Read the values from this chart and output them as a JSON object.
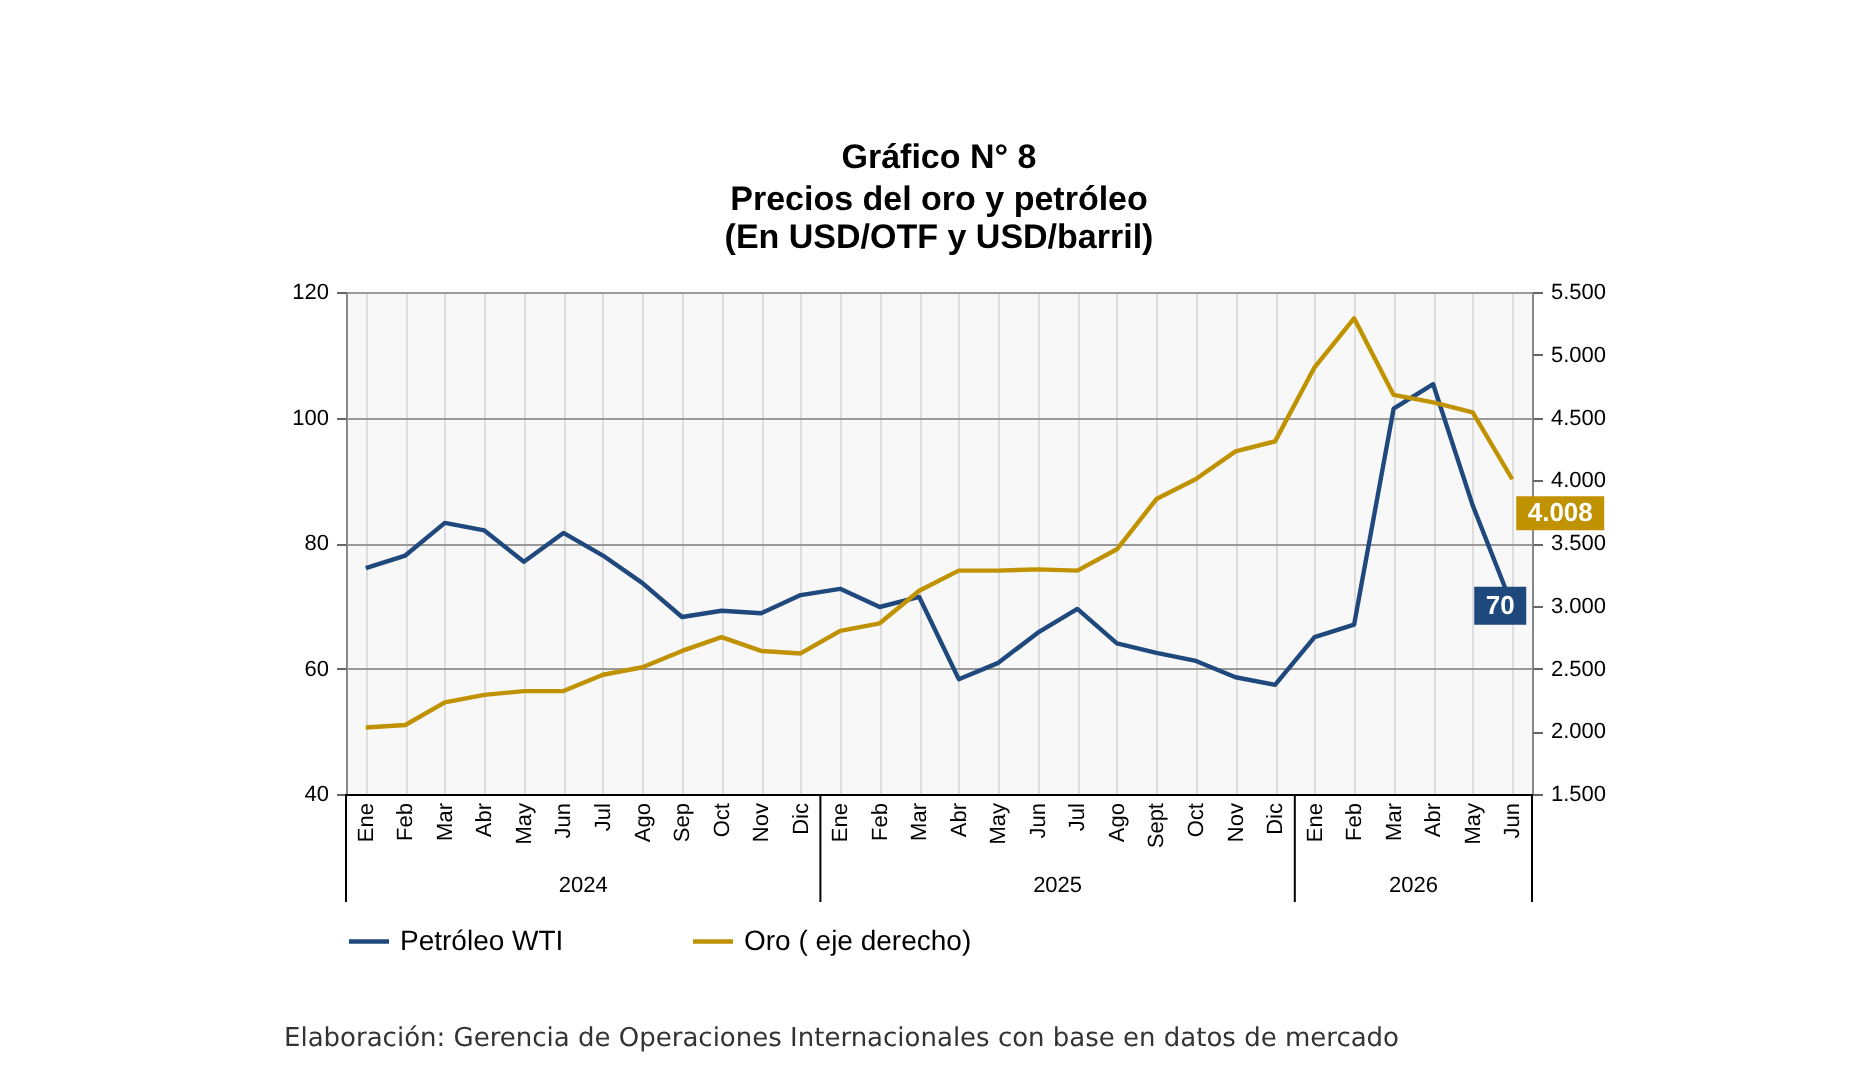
{
  "chart_data": {
    "type": "line",
    "title": "Gráfico N° 8",
    "subtitle": "Precios del oro y petróleo\n(En USD/OTF y USD/barril)",
    "categories": [
      "Ene",
      "Feb",
      "Mar",
      "Abr",
      "May",
      "Jun",
      "Jul",
      "Ago",
      "Sep",
      "Oct",
      "Nov",
      "Dic",
      "Ene",
      "Feb",
      "Mar",
      "Abr",
      "May",
      "Jun",
      "Jul",
      "Ago",
      "Sept",
      "Oct",
      "Nov",
      "Dic",
      "Ene",
      "Feb",
      "Mar",
      "Abr",
      "May",
      "Jun"
    ],
    "series": [
      {
        "name": "Petróleo WTI",
        "color": "#1f497d",
        "values": [
          76,
          78,
          83.2,
          82,
          77,
          81.6,
          78,
          73.6,
          68.2,
          69.2,
          68.8,
          71.7,
          72.7,
          69.8,
          71.4,
          58.3,
          60.9,
          65.7,
          69.5,
          64,
          62.5,
          61.2,
          58.6,
          57.4,
          65,
          67,
          101.4,
          105.3,
          86,
          70
        ],
        "value_labels": [
          null,
          null,
          null,
          null,
          null,
          null,
          null,
          null,
          null,
          null,
          null,
          null,
          null,
          null,
          null,
          null,
          null,
          null,
          null,
          null,
          null,
          null,
          null,
          null,
          null,
          null,
          null,
          null,
          null,
          "70"
        ]
      },
      {
        "name": "Oro ( eje derecho)",
        "color": "#c09200",
        "axis": "y2",
        "values": [
          2030,
          2050,
          2230,
          2290,
          2320,
          2320,
          2450,
          2510,
          2640,
          2750,
          2640,
          2620,
          2800,
          2860,
          3120,
          3280,
          3280,
          3290,
          3280,
          3450,
          3850,
          4010,
          4230,
          4310,
          4900,
          5290,
          4680,
          4620,
          4540,
          4008
        ],
        "value_labels": [
          null,
          null,
          null,
          null,
          null,
          null,
          null,
          null,
          null,
          null,
          null,
          null,
          null,
          null,
          null,
          null,
          null,
          null,
          null,
          null,
          null,
          null,
          null,
          null,
          null,
          null,
          null,
          null,
          null,
          "4.008"
        ]
      }
    ],
    "ylim": [
      40,
      120
    ],
    "yticks": [
      40,
      60,
      80,
      100,
      120
    ],
    "y2lim": [
      1500,
      5500
    ],
    "y2ticks": [
      {
        "value": 1500,
        "label": "1.500"
      },
      {
        "value": 2000,
        "label": "2.000"
      },
      {
        "value": 2500,
        "label": "2.500"
      },
      {
        "value": 3000,
        "label": "3.000"
      },
      {
        "value": 3500,
        "label": "3.500"
      },
      {
        "value": 4000,
        "label": "4.000"
      },
      {
        "value": 4500,
        "label": "4.500"
      },
      {
        "value": 5000,
        "label": "5.000"
      },
      {
        "value": 5500,
        "label": "5.500"
      }
    ],
    "grid": true,
    "legend": "bottom",
    "line_style": "solid",
    "annotations": [
      "2024",
      "2025",
      "2026",
      "Elaboración: Gerencia de Operaciones Internacionales con base en datos de mercado"
    ]
  }
}
